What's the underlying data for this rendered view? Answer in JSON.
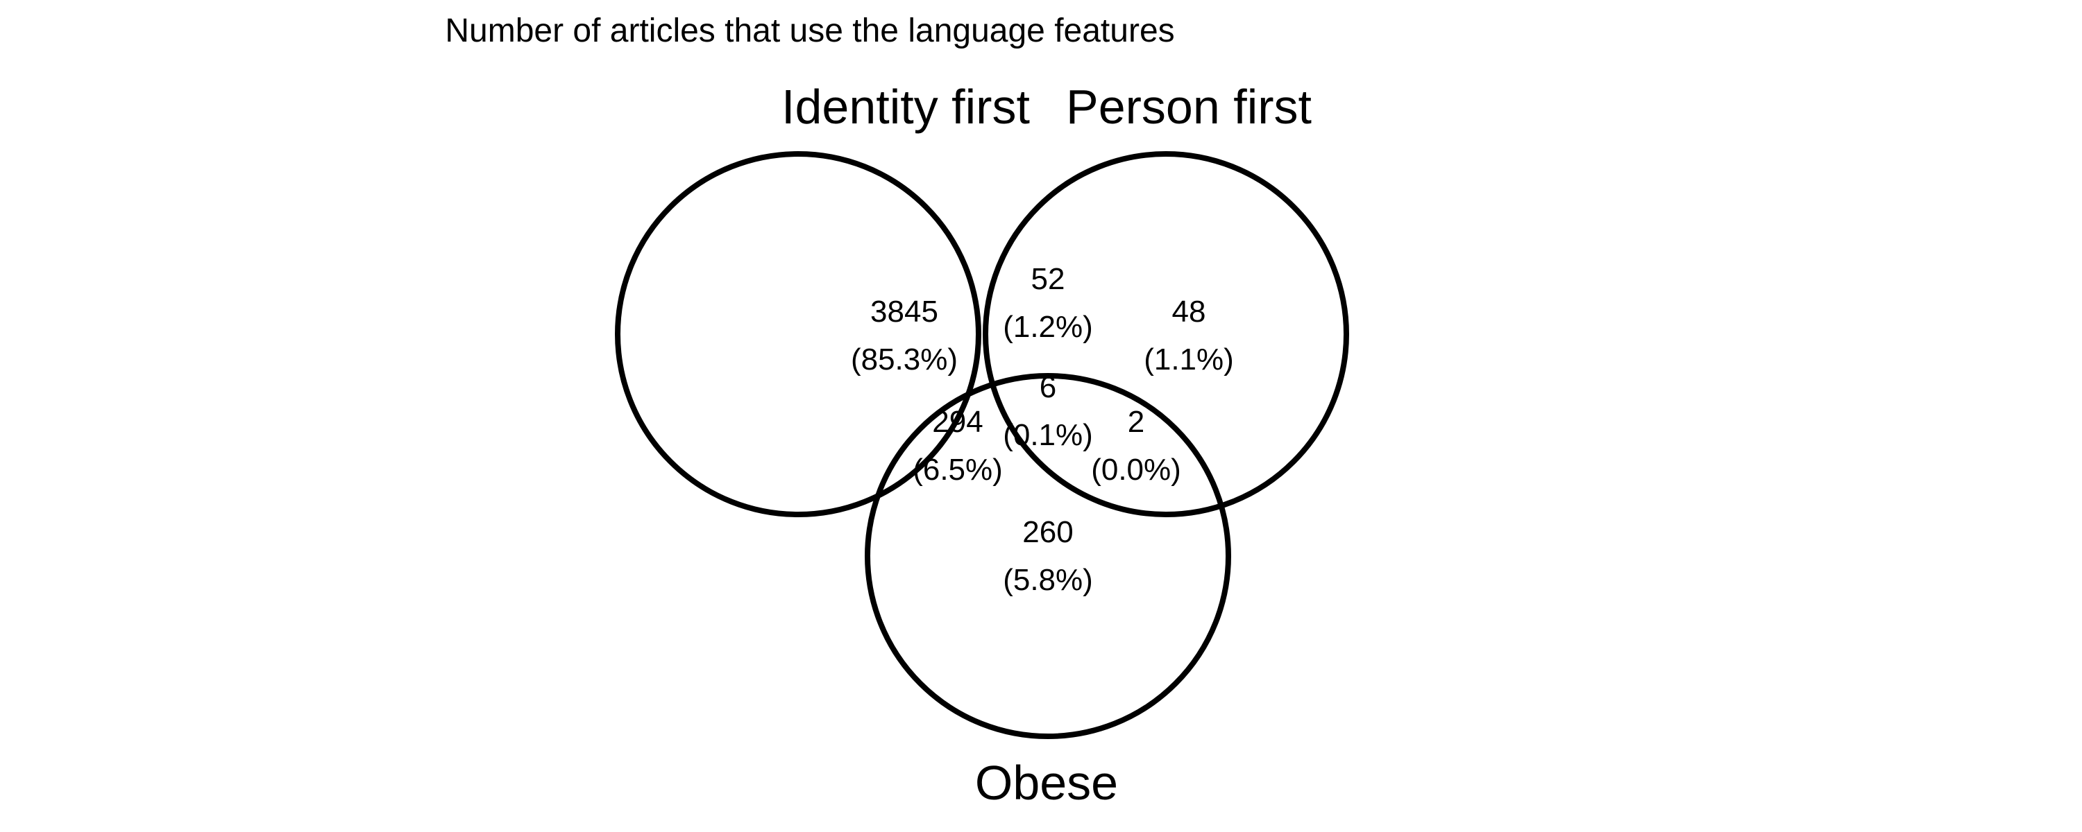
{
  "title": "Number of articles that use the language features",
  "sets": [
    {
      "key": "identity_first",
      "label": "Identity first"
    },
    {
      "key": "person_first",
      "label": "Person first"
    },
    {
      "key": "obese",
      "label": "Obese"
    }
  ],
  "regions": {
    "identity_only": {
      "count": "3845",
      "percent": "(85.3%)"
    },
    "identity_person": {
      "count": "52",
      "percent": "(1.2%)"
    },
    "person_only": {
      "count": "48",
      "percent": "(1.1%)"
    },
    "identity_obese": {
      "count": "294",
      "percent": "(6.5%)"
    },
    "all_three": {
      "count": "6",
      "percent": "(0.1%)"
    },
    "person_obese": {
      "count": "2",
      "percent": "(0.0%)"
    },
    "obese_only": {
      "count": "260",
      "percent": "(5.8%)"
    }
  },
  "colors": {
    "stroke": "#000000",
    "text": "#000000",
    "background": "#ffffff"
  }
}
